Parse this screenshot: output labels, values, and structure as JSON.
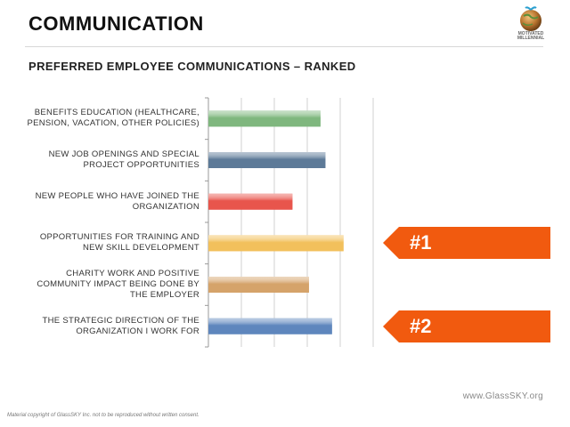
{
  "header": {
    "title": "COMMUNICATION",
    "logo_text": "MOTIVATED MILLENNIAL"
  },
  "chart_data": {
    "type": "bar",
    "orientation": "horizontal",
    "title": "PREFERRED EMPLOYEE COMMUNICATIONS – RANKED",
    "categories": [
      "BENEFITS EDUCATION (HEALTHCARE, PENSION, VACATION, OTHER POLICIES)",
      "NEW JOB OPENINGS AND SPECIAL PROJECT OPPORTUNITIES",
      "NEW PEOPLE WHO HAVE JOINED THE ORGANIZATION",
      "OPPORTUNITIES FOR TRAINING AND NEW SKILL DEVELOPMENT",
      "CHARITY WORK AND POSITIVE COMMUNITY IMPACT BEING DONE BY THE EMPLOYER",
      "THE STRATEGIC DIRECTION OF THE ORGANIZATION I WORK FOR"
    ],
    "values": [
      3.4,
      3.55,
      2.55,
      4.1,
      3.05,
      3.75
    ],
    "colors": [
      "#7fb77e",
      "#5d7a98",
      "#e8554c",
      "#f2c05c",
      "#d5a36a",
      "#5e86bd"
    ],
    "xlim": [
      0,
      5
    ],
    "grid": true,
    "legend": "none",
    "xlabel": "",
    "ylabel": ""
  },
  "rank_markers": [
    {
      "label": "#1",
      "category_index": 3,
      "color": "#f15a0f"
    },
    {
      "label": "#2",
      "category_index": 5,
      "color": "#f15a0f"
    }
  ],
  "footer": {
    "url": "www.GlassSKY.org",
    "copyright": "Material copyright of GlassSKY Inc. not to be reproduced without written consent."
  }
}
